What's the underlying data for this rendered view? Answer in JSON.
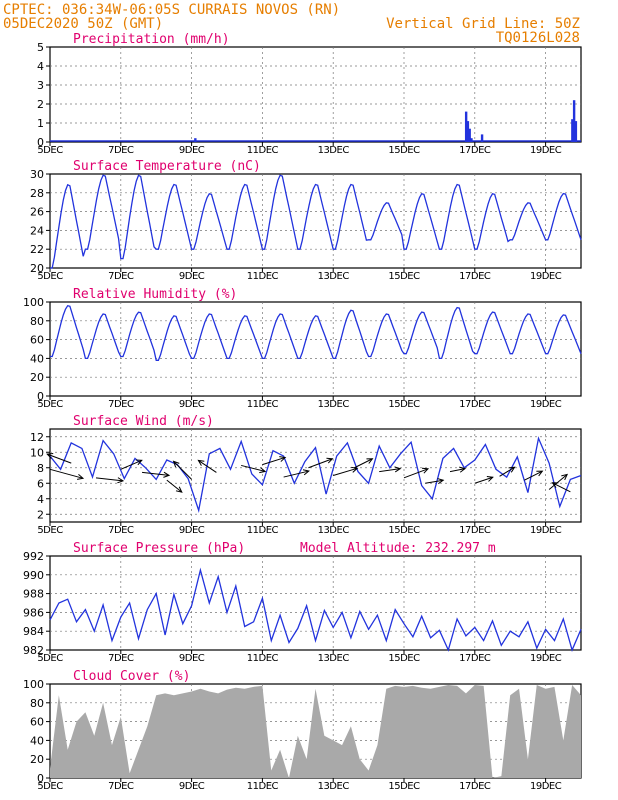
{
  "header": {
    "line1": "CPTEC:   036:34W-06:05S   CURRAIS NOVOS (RN)",
    "line2_left": "05DEC2020 50Z (GMT)",
    "line2_right": "Vertical Grid Line: 50Z",
    "line3_right": "TQ0126L028"
  },
  "colors": {
    "header": "#e67e00",
    "title": "#e0006e",
    "series": "#2233dd",
    "cloud": "#a9a9a9",
    "grid": "#777777"
  },
  "x_axis": {
    "start_day": 5,
    "end_day": 20,
    "tick_labels": [
      "5DEC",
      "7DEC",
      "9DEC",
      "11DEC",
      "13DEC",
      "15DEC",
      "17DEC",
      "19DEC"
    ],
    "tick_days": [
      5,
      7,
      9,
      11,
      13,
      15,
      17,
      19
    ]
  },
  "chart_data": [
    {
      "type": "bar",
      "title": "Precipitation (mm/h)",
      "ylim": [
        0,
        5
      ],
      "yticks": [
        0,
        1,
        2,
        3,
        4,
        5
      ],
      "x": [
        9.1,
        16.75,
        16.8,
        16.85,
        16.9,
        17.2,
        19.75,
        19.8,
        19.85
      ],
      "values": [
        0.2,
        1.6,
        1.1,
        0.7,
        0.2,
        0.4,
        1.2,
        2.2,
        1.1
      ]
    },
    {
      "type": "line",
      "title": "Surface Temperature (nC)",
      "ylim": [
        20,
        30
      ],
      "yticks": [
        20,
        22,
        24,
        26,
        28,
        30
      ],
      "daily_max": [
        29,
        30,
        30,
        29,
        28,
        29,
        30,
        29,
        29,
        27,
        28,
        29,
        28,
        27,
        28
      ],
      "daily_min": [
        20,
        22,
        21,
        22,
        22,
        22,
        22,
        22,
        22,
        23,
        22,
        22,
        22,
        23,
        23
      ]
    },
    {
      "type": "line",
      "title": "Relative Humidity (%)",
      "ylim": [
        0,
        100
      ],
      "yticks": [
        0,
        20,
        40,
        60,
        80,
        100
      ],
      "daily_max": [
        97,
        88,
        90,
        86,
        88,
        86,
        88,
        86,
        92,
        88,
        90,
        95,
        90,
        88,
        87
      ],
      "daily_min": [
        42,
        40,
        42,
        38,
        40,
        40,
        40,
        40,
        40,
        42,
        45,
        40,
        45,
        45,
        45
      ]
    },
    {
      "type": "line",
      "title": "Surface Wind (m/s)",
      "ylim": [
        1,
        13
      ],
      "yticks": [
        2,
        4,
        6,
        8,
        10,
        12
      ],
      "x": [
        5.0,
        5.3,
        5.6,
        5.9,
        6.2,
        6.5,
        6.8,
        7.1,
        7.4,
        7.7,
        8.0,
        8.3,
        8.6,
        8.9,
        9.2,
        9.5,
        9.8,
        10.1,
        10.4,
        10.7,
        11.0,
        11.3,
        11.6,
        11.9,
        12.2,
        12.5,
        12.8,
        13.1,
        13.4,
        13.7,
        14.0,
        14.3,
        14.6,
        14.9,
        15.2,
        15.5,
        15.8,
        16.1,
        16.4,
        16.7,
        17.0,
        17.3,
        17.6,
        17.9,
        18.2,
        18.5,
        18.8,
        19.1,
        19.4,
        19.7,
        20.0
      ],
      "values": [
        9.5,
        7.8,
        11.2,
        10.5,
        6.8,
        11.5,
        9.8,
        6.6,
        9.2,
        8.0,
        6.5,
        9.0,
        8.4,
        6.6,
        2.5,
        9.8,
        10.5,
        7.8,
        11.4,
        7.2,
        5.8,
        10.2,
        9.5,
        6.0,
        8.8,
        10.6,
        4.6,
        9.5,
        11.2,
        7.5,
        6.0,
        10.8,
        8.0,
        9.8,
        11.3,
        5.7,
        4.0,
        9.2,
        10.5,
        8.0,
        9.0,
        11.0,
        7.8,
        6.8,
        9.4,
        4.8,
        11.8,
        8.6,
        3.0,
        6.5,
        7.0
      ],
      "vectors": {
        "x": [
          5.0,
          5.6,
          6.3,
          7.0,
          7.6,
          8.3,
          9.0,
          9.7,
          10.4,
          11.0,
          11.6,
          12.3,
          13.0,
          13.6,
          14.3,
          15.0,
          15.6,
          16.3,
          17.0,
          17.7,
          18.4,
          19.1,
          19.7
        ],
        "u": [
          5.5,
          -4.0,
          4.5,
          3.5,
          4.5,
          2.5,
          -3.0,
          -3.0,
          4.0,
          3.8,
          4.2,
          4.0,
          4.0,
          3.0,
          3.5,
          4.0,
          3.0,
          2.5,
          3.0,
          2.5,
          3.0,
          3.0,
          -3.0
        ],
        "v": [
          -1.5,
          1.5,
          -0.5,
          1.5,
          -0.5,
          -2.0,
          3.0,
          2.0,
          -1.0,
          1.2,
          1.0,
          1.5,
          1.2,
          1.5,
          0.5,
          1.5,
          0.5,
          0.5,
          1.0,
          1.5,
          1.5,
          2.5,
          1.5
        ],
        "base": [
          7.8,
          8.6,
          6.7,
          7.8,
          7.4,
          6.4,
          6.5,
          7.4,
          8.3,
          8.4,
          6.8,
          8.0,
          7.0,
          8.0,
          7.5,
          6.7,
          6.0,
          7.5,
          6.0,
          6.9,
          6.4,
          5.2,
          4.9
        ]
      }
    },
    {
      "type": "line",
      "title": "Surface Pressure (hPa)",
      "annotation": "Model Altitude: 232.297 m",
      "ylim": [
        982,
        992
      ],
      "yticks": [
        982,
        984,
        986,
        988,
        990,
        992
      ],
      "x": [
        5.0,
        5.25,
        5.5,
        5.75,
        6.0,
        6.25,
        6.5,
        6.75,
        7.0,
        7.25,
        7.5,
        7.75,
        8.0,
        8.25,
        8.5,
        8.75,
        9.0,
        9.25,
        9.5,
        9.75,
        10.0,
        10.25,
        10.5,
        10.75,
        11.0,
        11.25,
        11.5,
        11.75,
        12.0,
        12.25,
        12.5,
        12.75,
        13.0,
        13.25,
        13.5,
        13.75,
        14.0,
        14.25,
        14.5,
        14.75,
        15.0,
        15.25,
        15.5,
        15.75,
        16.0,
        16.25,
        16.5,
        16.75,
        17.0,
        17.25,
        17.5,
        17.75,
        18.0,
        18.25,
        18.5,
        18.75,
        19.0,
        19.25,
        19.5,
        19.75,
        20.0
      ],
      "values": [
        985.2,
        987.0,
        987.4,
        985.0,
        986.3,
        984.0,
        986.8,
        983.0,
        985.5,
        987.0,
        983.2,
        986.3,
        988.0,
        983.6,
        987.9,
        984.8,
        986.7,
        990.5,
        987.0,
        989.8,
        986.0,
        988.8,
        984.5,
        985.0,
        987.5,
        983.0,
        985.7,
        982.8,
        984.3,
        986.7,
        983.0,
        986.2,
        984.4,
        986.0,
        983.3,
        986.1,
        984.2,
        985.7,
        983.0,
        986.3,
        984.8,
        983.4,
        985.6,
        983.3,
        984.1,
        982.0,
        985.3,
        983.5,
        984.4,
        983.0,
        985.1,
        982.5,
        984.0,
        983.4,
        985.0,
        982.2,
        984.2,
        983.0,
        985.3,
        982.0,
        984.2
      ]
    },
    {
      "type": "area",
      "title": "Cloud Cover (%)",
      "ylim": [
        0,
        100
      ],
      "yticks": [
        0,
        20,
        40,
        60,
        80,
        100
      ],
      "x": [
        5.0,
        5.25,
        5.5,
        5.75,
        6.0,
        6.25,
        6.5,
        6.75,
        7.0,
        7.25,
        7.5,
        7.75,
        8.0,
        8.25,
        8.5,
        8.75,
        9.0,
        9.25,
        9.5,
        9.75,
        10.0,
        10.25,
        10.5,
        10.75,
        11.0,
        11.25,
        11.5,
        11.75,
        12.0,
        12.25,
        12.5,
        12.75,
        13.0,
        13.25,
        13.5,
        13.75,
        14.0,
        14.25,
        14.5,
        14.75,
        15.0,
        15.25,
        15.5,
        15.75,
        16.0,
        16.25,
        16.5,
        16.75,
        17.0,
        17.25,
        17.5,
        17.75,
        18.0,
        18.25,
        18.5,
        18.75,
        19.0,
        19.25,
        19.5,
        19.75,
        20.0
      ],
      "values": [
        10,
        88,
        30,
        60,
        70,
        45,
        80,
        35,
        65,
        5,
        30,
        55,
        88,
        90,
        88,
        90,
        92,
        95,
        92,
        90,
        94,
        96,
        95,
        97,
        98,
        8,
        30,
        0,
        45,
        20,
        95,
        45,
        40,
        35,
        55,
        20,
        8,
        35,
        95,
        98,
        97,
        98,
        96,
        95,
        97,
        99,
        98,
        90,
        99,
        98,
        0,
        2,
        88,
        95,
        20,
        99,
        95,
        97,
        40,
        99,
        88
      ]
    }
  ]
}
